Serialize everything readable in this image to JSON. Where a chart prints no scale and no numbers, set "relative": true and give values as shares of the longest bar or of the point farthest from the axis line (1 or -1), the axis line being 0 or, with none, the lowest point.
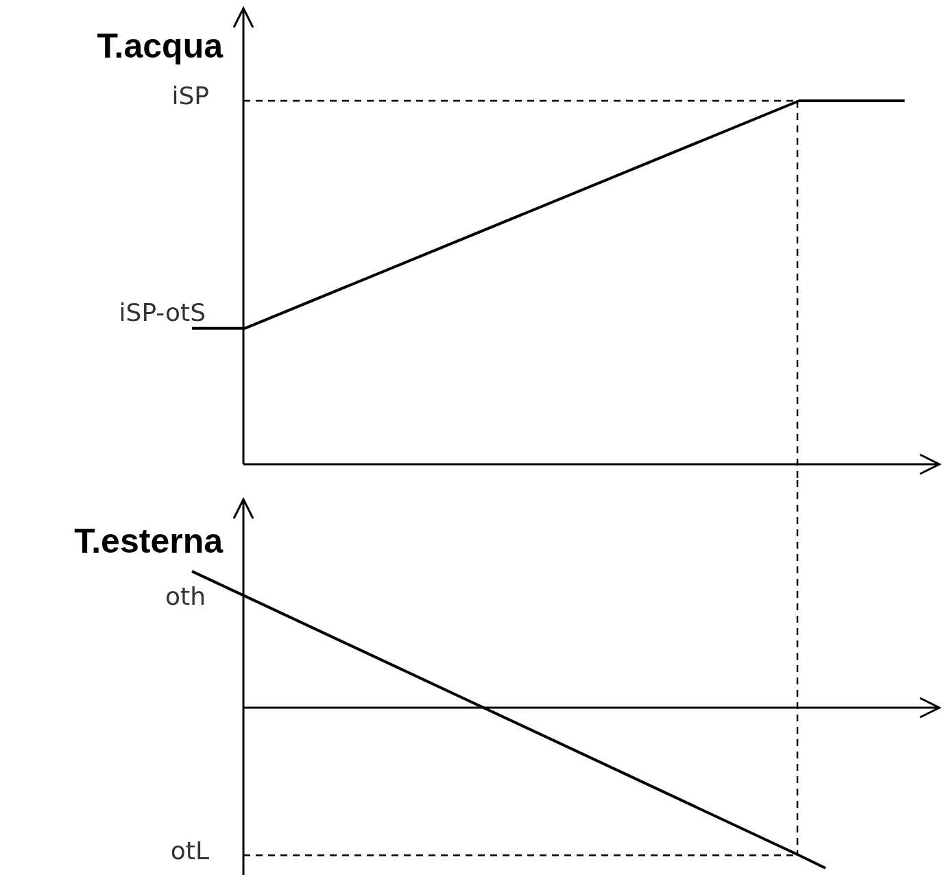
{
  "chart_data": [
    {
      "type": "line",
      "ylabel": "T.acqua",
      "relative": true,
      "tick_labels": false,
      "legend": false,
      "marker": "none",
      "line_style": "solid",
      "categories": [
        null,
        null,
        null,
        null,
        null,
        null,
        null,
        null,
        null,
        null,
        null,
        null,
        null,
        null,
        null,
        null,
        null,
        null,
        null,
        null,
        null,
        null,
        null,
        null,
        null,
        null,
        null,
        null
      ],
      "series": [
        {
          "color": "#000000",
          "values": [
            0.374,
            null,
            0.374,
            null,
            null,
            null,
            null,
            null,
            null,
            null,
            null,
            null,
            null,
            null,
            null,
            null,
            null,
            null,
            null,
            null,
            null,
            null,
            null,
            1,
            null,
            null,
            null,
            1
          ]
        }
      ],
      "ref_lines": [
        {
          "axis": "y",
          "value": 1,
          "label": "iSP",
          "line_style": "dashed",
          "color": "#000000"
        }
      ],
      "annotations": [
        "iSP-otS"
      ]
    },
    {
      "type": "line",
      "ylabel": "T.esterna",
      "relative": true,
      "tick_labels": false,
      "legend": false,
      "marker": "none",
      "line_style": "solid",
      "categories": [
        null,
        null,
        null,
        null,
        null,
        null,
        null,
        null,
        null,
        null,
        null,
        null,
        null,
        null,
        null,
        null,
        null,
        null,
        null,
        null,
        null,
        null,
        null,
        null,
        null,
        null,
        null,
        null
      ],
      "series": [
        {
          "color": "#000000",
          "values": [
            0.85,
            null,
            null,
            null,
            null,
            null,
            null,
            null,
            null,
            null,
            null,
            null,
            null,
            null,
            null,
            null,
            null,
            null,
            null,
            null,
            null,
            null,
            null,
            -0.92,
            -1,
            null,
            null,
            null
          ]
        }
      ],
      "ref_lines": [
        {
          "axis": "y",
          "value": -0.92,
          "label": "otL",
          "line_style": "dashed",
          "color": "#000000"
        }
      ],
      "annotations": [
        "oth"
      ]
    }
  ]
}
